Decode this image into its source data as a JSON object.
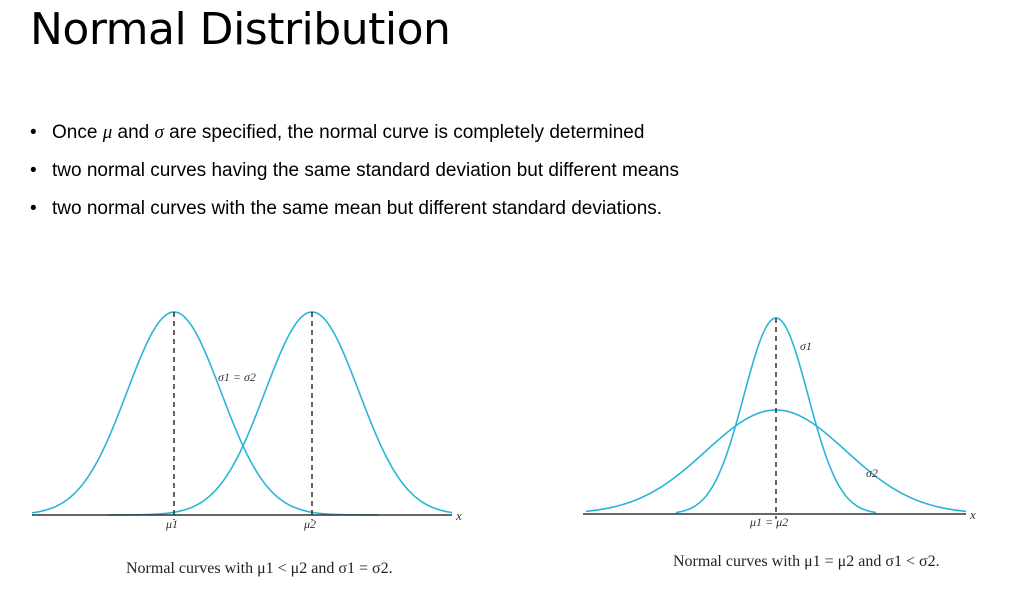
{
  "title": "Normal Distribution",
  "bullets": [
    {
      "before": "Once ",
      "sym1": "μ",
      "middle": " and ",
      "sym2": "σ",
      "after": " are specified, the normal curve is completely determined"
    },
    {
      "text": "two normal curves having the same standard deviation but different means"
    },
    {
      "text": "two normal curves with the same mean but different standard deviations."
    }
  ],
  "figure_left": {
    "label_sigma": "σ1 = σ2",
    "mu1": "μ1",
    "mu2": "μ2",
    "axis_label": "x",
    "caption": "Normal curves with μ1 < μ2 and σ1 = σ2."
  },
  "figure_right": {
    "label_sigma1": "σ1",
    "label_sigma2": "σ2",
    "mu_label": "μ1 = μ2",
    "axis_label": "x",
    "caption": "Normal curves with μ1 = μ2 and σ1 < σ2."
  },
  "colors": {
    "curve": "#29b6d6",
    "axis": "#333333"
  }
}
